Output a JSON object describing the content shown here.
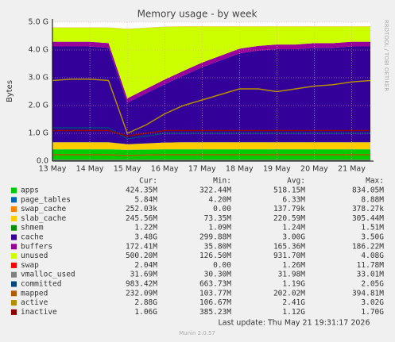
{
  "chart_data": {
    "type": "stacked-area",
    "title": "Memory usage - by week",
    "y_label": "Bytes",
    "side_text": "RRDTOOL / TOBI OETIKER",
    "categories": [
      "13 May",
      null,
      "14 May",
      null,
      "15 May",
      null,
      "16 May",
      null,
      "17 May",
      null,
      "18 May",
      null,
      "19 May",
      null,
      "20 May",
      null,
      "21 May",
      null
    ],
    "ylim": [
      0,
      5
    ],
    "yticks": [
      {
        "value": 0,
        "label": "0.0"
      },
      {
        "value": 1,
        "label": "1.0 G"
      },
      {
        "value": 2,
        "label": "2.0 G"
      },
      {
        "value": 3,
        "label": "3.0 G"
      },
      {
        "value": 4,
        "label": "4.0 G"
      },
      {
        "value": 5,
        "label": "5.0 G"
      }
    ],
    "grid": true,
    "series": [
      {
        "name": "apps",
        "color": "#00cc00",
        "stack": true,
        "values": [
          0.42,
          0.42,
          0.42,
          0.42,
          0.4,
          0.41,
          0.42,
          0.42,
          0.42,
          0.42,
          0.42,
          0.42,
          0.42,
          0.42,
          0.42,
          0.42,
          0.42,
          0.42
        ]
      },
      {
        "name": "page_tables",
        "color": "#0066b3",
        "stack": true,
        "values": [
          0.006,
          0.006,
          0.006,
          0.006,
          0.006,
          0.006,
          0.006,
          0.006,
          0.006,
          0.006,
          0.006,
          0.006,
          0.006,
          0.006,
          0.006,
          0.006,
          0.006,
          0.006
        ]
      },
      {
        "name": "swap_cache",
        "color": "#ff8000",
        "stack": true,
        "values": [
          0.0003,
          0.0003,
          0.0003,
          0.0003,
          0.0003,
          0.0003,
          0.0003,
          0.0003,
          0.0003,
          0.0003,
          0.0003,
          0.0003,
          0.0003,
          0.0003,
          0.0003,
          0.0003,
          0.0003,
          0.0003
        ]
      },
      {
        "name": "slab_cache",
        "color": "#ffcc00",
        "stack": true,
        "values": [
          0.25,
          0.25,
          0.25,
          0.25,
          0.2,
          0.22,
          0.24,
          0.25,
          0.25,
          0.25,
          0.25,
          0.25,
          0.25,
          0.25,
          0.25,
          0.25,
          0.25,
          0.25
        ]
      },
      {
        "name": "shmem",
        "color": "#008f00",
        "stack": true,
        "values": [
          0.001,
          0.001,
          0.001,
          0.001,
          0.001,
          0.001,
          0.001,
          0.001,
          0.001,
          0.001,
          0.001,
          0.001,
          0.001,
          0.001,
          0.001,
          0.001,
          0.001,
          0.001
        ]
      },
      {
        "name": "cache",
        "color": "#330099",
        "stack": true,
        "values": [
          3.45,
          3.45,
          3.45,
          3.4,
          1.5,
          1.8,
          2.1,
          2.4,
          2.7,
          2.95,
          3.2,
          3.3,
          3.35,
          3.35,
          3.4,
          3.4,
          3.45,
          3.45
        ]
      },
      {
        "name": "buffers",
        "color": "#990099",
        "stack": true,
        "values": [
          0.17,
          0.17,
          0.17,
          0.17,
          0.15,
          0.16,
          0.17,
          0.17,
          0.17,
          0.17,
          0.17,
          0.17,
          0.17,
          0.17,
          0.17,
          0.17,
          0.17,
          0.17
        ]
      },
      {
        "name": "unused",
        "color": "#ccff00",
        "stack": true,
        "values": [
          0.51,
          0.51,
          0.51,
          0.56,
          2.5,
          2.2,
          1.9,
          1.6,
          1.3,
          1.05,
          0.8,
          0.7,
          0.65,
          0.65,
          0.6,
          0.6,
          0.55,
          0.55
        ]
      },
      {
        "name": "swap",
        "color": "#ff0000",
        "stack": true,
        "values": [
          0.002,
          0.002,
          0.002,
          0.002,
          0.002,
          0.002,
          0.002,
          0.002,
          0.002,
          0.002,
          0.002,
          0.002,
          0.002,
          0.002,
          0.002,
          0.002,
          0.002,
          0.002
        ]
      },
      {
        "name": "vmalloc_used",
        "color": "#808080",
        "stack": false,
        "values": [
          0.03,
          0.03,
          0.03,
          0.03,
          0.03,
          0.03,
          0.03,
          0.03,
          0.03,
          0.03,
          0.03,
          0.03,
          0.03,
          0.03,
          0.03,
          0.03,
          0.03,
          0.03
        ]
      },
      {
        "name": "committed",
        "color": "#00487d",
        "stack": false,
        "values": [
          1.2,
          1.2,
          1.2,
          1.2,
          0.8,
          0.9,
          1.0,
          1.0,
          1.0,
          1.0,
          1.0,
          1.0,
          1.0,
          1.0,
          1.0,
          1.0,
          1.0,
          1.0
        ]
      },
      {
        "name": "mapped",
        "color": "#b35a00",
        "stack": false,
        "values": [
          0.23,
          0.23,
          0.23,
          0.23,
          0.2,
          0.22,
          0.23,
          0.23,
          0.23,
          0.23,
          0.23,
          0.23,
          0.23,
          0.23,
          0.23,
          0.23,
          0.23,
          0.23
        ]
      },
      {
        "name": "active",
        "color": "#b38f00",
        "stack": false,
        "values": [
          2.9,
          2.95,
          2.95,
          2.9,
          1.0,
          1.3,
          1.7,
          2.0,
          2.2,
          2.4,
          2.6,
          2.6,
          2.5,
          2.6,
          2.7,
          2.75,
          2.85,
          2.9
        ]
      },
      {
        "name": "inactive",
        "color": "#8f0000",
        "stack": false,
        "values": [
          1.1,
          1.1,
          1.1,
          1.1,
          0.9,
          1.0,
          1.1,
          1.1,
          1.1,
          1.1,
          1.1,
          1.1,
          1.1,
          1.1,
          1.1,
          1.1,
          1.1,
          1.1
        ]
      }
    ],
    "stats": {
      "headers": [
        "Cur:",
        "Min:",
        "Avg:",
        "Max:"
      ],
      "rows": [
        [
          "424.35M",
          "322.44M",
          "518.15M",
          "834.05M"
        ],
        [
          "5.84M",
          "4.20M",
          "6.33M",
          "8.88M"
        ],
        [
          "252.03k",
          "0.00",
          "137.79k",
          "378.27k"
        ],
        [
          "245.56M",
          "73.35M",
          "220.59M",
          "305.44M"
        ],
        [
          "1.22M",
          "1.09M",
          "1.24M",
          "1.51M"
        ],
        [
          "3.48G",
          "299.88M",
          "3.00G",
          "3.50G"
        ],
        [
          "172.41M",
          "35.80M",
          "165.36M",
          "186.22M"
        ],
        [
          "500.20M",
          "126.50M",
          "931.70M",
          "4.08G"
        ],
        [
          "2.04M",
          "0.00",
          "1.26M",
          "11.78M"
        ],
        [
          "31.69M",
          "30.30M",
          "31.98M",
          "33.01M"
        ],
        [
          "983.42M",
          "663.73M",
          "1.19G",
          "2.05G"
        ],
        [
          "232.09M",
          "103.77M",
          "202.02M",
          "394.81M"
        ],
        [
          "2.88G",
          "106.67M",
          "2.41G",
          "3.02G"
        ],
        [
          "1.06G",
          "385.23M",
          "1.12G",
          "1.70G"
        ]
      ]
    },
    "last_update": "Last update: Thu May 21 19:31:17 2026",
    "footer": "Munin 2.0.57"
  }
}
